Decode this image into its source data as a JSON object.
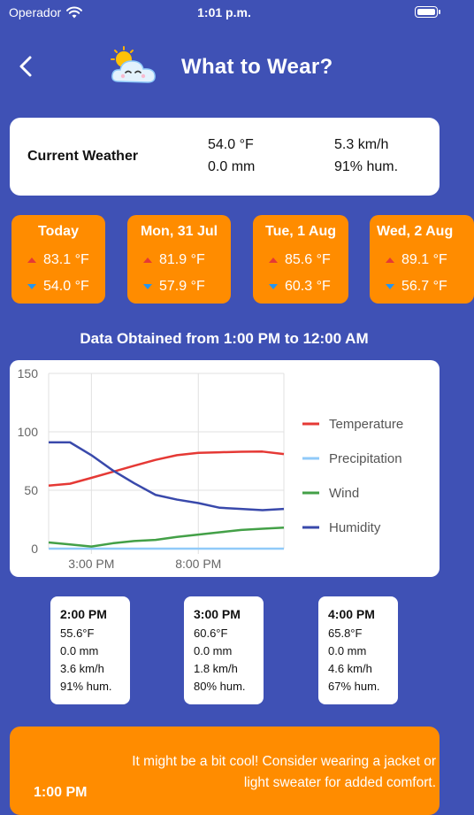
{
  "status_bar": {
    "carrier": "Operador",
    "time": "1:01 p.m."
  },
  "header": {
    "title": "What to Wear?",
    "back_icon": "chevron-left-icon",
    "logo_icon": "sun-cloud-icon"
  },
  "current": {
    "label": "Current Weather",
    "temperature": "54.0 °F",
    "precipitation": "0.0 mm",
    "wind": "5.3 km/h",
    "humidity": "91% hum."
  },
  "forecast": [
    {
      "day": "Today",
      "high": "83.1 °F",
      "low": "54.0 °F"
    },
    {
      "day": "Mon, 31 Jul",
      "high": "81.9 °F",
      "low": "57.9 °F"
    },
    {
      "day": "Tue, 1 Aug",
      "high": "85.6 °F",
      "low": "60.3 °F"
    },
    {
      "day": "Wed, 2 Aug",
      "high": "89.1 °F",
      "low": "56.7 °F"
    }
  ],
  "range_title": "Data Obtained from 1:00 PM to 12:00 AM",
  "chart_data": {
    "type": "line",
    "x_ticks": [
      "3:00 PM",
      "8:00 PM"
    ],
    "ylim": [
      0,
      150
    ],
    "y_ticks": [
      "0",
      "50",
      "100",
      "150"
    ],
    "x_hours": [
      13,
      14,
      15,
      16,
      17,
      18,
      19,
      20,
      21,
      22,
      23,
      24
    ],
    "grid": true,
    "legend_position": "right",
    "series": [
      {
        "name": "Temperature",
        "color": "#e53935",
        "values": [
          54,
          55.6,
          60.6,
          65.8,
          71,
          76,
          80,
          82,
          82.5,
          83,
          83.1,
          81
        ]
      },
      {
        "name": "Precipitation",
        "color": "#90caf9",
        "values": [
          0,
          0,
          0,
          0,
          0,
          0,
          0,
          0,
          0,
          0,
          0,
          0
        ]
      },
      {
        "name": "Wind",
        "color": "#43a047",
        "values": [
          5.3,
          3.6,
          1.8,
          4.6,
          6.5,
          7.5,
          10,
          12,
          14,
          16,
          17,
          18
        ]
      },
      {
        "name": "Humidity",
        "color": "#3949ab",
        "values": [
          91,
          91,
          80,
          67,
          56,
          46,
          42,
          39,
          35,
          34,
          33,
          34
        ]
      }
    ]
  },
  "hourly": [
    {
      "time": "2:00 PM",
      "temp": "55.6°F",
      "precip": "0.0 mm",
      "wind": "3.6 km/h",
      "hum": "91% hum."
    },
    {
      "time": "3:00 PM",
      "temp": "60.6°F",
      "precip": "0.0 mm",
      "wind": "1.8 km/h",
      "hum": "80% hum."
    },
    {
      "time": "4:00 PM",
      "temp": "65.8°F",
      "precip": "0.0 mm",
      "wind": "4.6 km/h",
      "hum": "67% hum."
    }
  ],
  "recommendation": {
    "time": "1:00 PM",
    "text": "It might be a bit cool! Consider wearing a jacket or light sweater for added comfort."
  }
}
